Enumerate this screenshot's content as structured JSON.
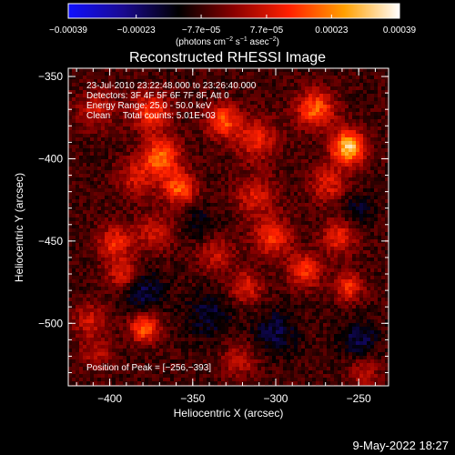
{
  "chart_data": {
    "type": "heatmap",
    "title": "Reconstructed RHESSI Image",
    "xlabel": "Heliocentric X (arcsec)",
    "ylabel": "Heliocentric Y (arcsec)",
    "xlim": [
      -425,
      -232
    ],
    "ylim": [
      -538,
      -345
    ],
    "xticks": [
      {
        "value": -400,
        "label": "−400"
      },
      {
        "value": -350,
        "label": "−350"
      },
      {
        "value": -300,
        "label": "−300"
      },
      {
        "value": -250,
        "label": "−250"
      }
    ],
    "yticks": [
      {
        "value": -350,
        "label": "−350"
      },
      {
        "value": -400,
        "label": "−400"
      },
      {
        "value": -450,
        "label": "−450"
      },
      {
        "value": -500,
        "label": "−500"
      }
    ],
    "colorbar": {
      "range": [
        -0.00039,
        0.00039
      ],
      "ticks": [
        {
          "value": -0.00039,
          "label": "−0.00039"
        },
        {
          "value": -0.00023,
          "label": "−0.00023"
        },
        {
          "value": -7.7e-05,
          "label": "−7.7e−05"
        },
        {
          "value": 7.7e-05,
          "label": "7.7e−05"
        },
        {
          "value": 0.00023,
          "label": "0.00023"
        },
        {
          "value": 0.00039,
          "label": "0.00039"
        }
      ],
      "units_text": "(photons cm",
      "units_exp1": "−2",
      "units_mid": " s",
      "units_exp2": "−1",
      "units_mid2": " asec",
      "units_exp3": "−2",
      "units_end": ")",
      "stops": [
        "#1010ff",
        "#1a0a90",
        "#000000",
        "#8a0000",
        "#ff2000",
        "#ffa000",
        "#ffffff"
      ]
    },
    "annotations": [
      "23-Jul-2010 23:22:48.000 to 23:26:40.000",
      "Detectors: 3F 4F 5F 6F 7F 8F, Att 0",
      "Energy Range: 25.0 - 50.0 keV",
      "Clean     Total counts: 5.01E+03"
    ],
    "peak_text": "Position of Peak = [−256,−393]",
    "peak": [
      -256,
      -393
    ],
    "sources": [
      {
        "x": -256,
        "y": -393,
        "sigma": 7,
        "amp": 0.00039
      },
      {
        "x": -276,
        "y": -370,
        "sigma": 8,
        "amp": 0.00026
      },
      {
        "x": -332,
        "y": -377,
        "sigma": 7,
        "amp": 0.00024
      },
      {
        "x": -312,
        "y": -388,
        "sigma": 9,
        "amp": 0.00018
      },
      {
        "x": -375,
        "y": -372,
        "sigma": 8,
        "amp": 0.00022
      },
      {
        "x": -408,
        "y": -370,
        "sigma": 8,
        "amp": 0.00014
      },
      {
        "x": -369,
        "y": -399,
        "sigma": 8,
        "amp": 0.00027
      },
      {
        "x": -358,
        "y": -418,
        "sigma": 7,
        "amp": 0.00025
      },
      {
        "x": -384,
        "y": -412,
        "sigma": 8,
        "amp": 0.00014
      },
      {
        "x": -268,
        "y": -415,
        "sigma": 8,
        "amp": 0.00016
      },
      {
        "x": -312,
        "y": -423,
        "sigma": 9,
        "amp": 0.00015
      },
      {
        "x": -397,
        "y": -451,
        "sigma": 7,
        "amp": 0.00019
      },
      {
        "x": -392,
        "y": -470,
        "sigma": 7,
        "amp": 0.00017
      },
      {
        "x": -373,
        "y": -445,
        "sigma": 8,
        "amp": 0.00014
      },
      {
        "x": -336,
        "y": -458,
        "sigma": 8,
        "amp": 0.00013
      },
      {
        "x": -302,
        "y": -448,
        "sigma": 8,
        "amp": 0.0002
      },
      {
        "x": -282,
        "y": -468,
        "sigma": 7,
        "amp": 0.00021
      },
      {
        "x": -262,
        "y": -448,
        "sigma": 7,
        "amp": 0.00019
      },
      {
        "x": -256,
        "y": -478,
        "sigma": 6,
        "amp": 0.0002
      },
      {
        "x": -318,
        "y": -478,
        "sigma": 7,
        "amp": 0.00016
      },
      {
        "x": -379,
        "y": -503,
        "sigma": 6,
        "amp": 0.00027
      },
      {
        "x": -412,
        "y": -498,
        "sigma": 7,
        "amp": 0.00014
      },
      {
        "x": -408,
        "y": -518,
        "sigma": 7,
        "amp": 0.00011
      },
      {
        "x": -322,
        "y": -523,
        "sigma": 7,
        "amp": 0.00013
      },
      {
        "x": -247,
        "y": -530,
        "sigma": 7,
        "amp": 0.0001
      },
      {
        "x": -380,
        "y": -480,
        "sigma": 9,
        "amp": -0.00012
      },
      {
        "x": -340,
        "y": -495,
        "sigma": 10,
        "amp": -0.0001
      },
      {
        "x": -300,
        "y": -505,
        "sigma": 9,
        "amp": -0.00011
      },
      {
        "x": -250,
        "y": -510,
        "sigma": 8,
        "amp": -0.00012
      },
      {
        "x": -250,
        "y": -430,
        "sigma": 7,
        "amp": -8e-05
      },
      {
        "x": -345,
        "y": -440,
        "sigma": 8,
        "amp": -7e-05
      }
    ]
  },
  "footer": {
    "timestamp": "9-May-2022 18:27"
  }
}
